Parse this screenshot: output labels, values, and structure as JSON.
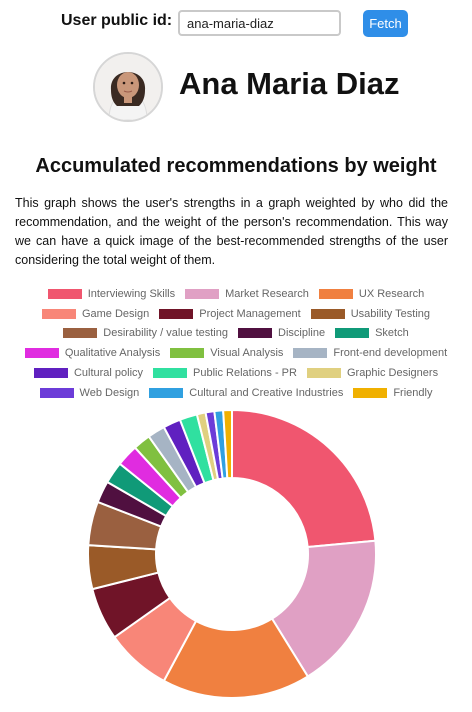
{
  "header": {
    "user_id_label": "User public id:",
    "user_id_value": "ana-maria-diaz",
    "fetch_label": "Fetch"
  },
  "profile": {
    "name": "Ana Maria Diaz"
  },
  "section": {
    "title": "Accumulated recommendations by weight",
    "description": "This graph shows the user's strengths in a graph weighted by who did the recommendation, and the weight of the person's recommendation. This way we can have a quick image of the best-recommended strengths of the user considering the total weight of them."
  },
  "legend_rows": [
    [
      0,
      1,
      2
    ],
    [
      3,
      4,
      5
    ],
    [
      6,
      7,
      8
    ],
    [
      9,
      10,
      11
    ],
    [
      12,
      13,
      14
    ],
    [
      15,
      16,
      17
    ]
  ],
  "chart_data": {
    "type": "pie",
    "categories": [
      "Interviewing Skills",
      "Market Research",
      "UX Research",
      "Game Design",
      "Project Management",
      "Usability Testing",
      "Desirability / value testing",
      "Discipline",
      "Sketch",
      "Qualitative Analysis",
      "Visual Analysis",
      "Front-end development",
      "Cultural policy",
      "Public Relations - PR",
      "Graphic Designers",
      "Web Design",
      "Cultural and Creative Industries",
      "Friendly"
    ],
    "values": [
      24,
      18,
      17,
      7.5,
      6,
      5,
      5,
      2.5,
      2.5,
      2.5,
      2,
      2,
      2,
      2,
      1,
      1,
      1,
      1
    ],
    "colors": [
      "#f0566f",
      "#e0a0c4",
      "#f08040",
      "#f88678",
      "#701428",
      "#9a5a28",
      "#9a6040",
      "#501040",
      "#109a78",
      "#e02ce0",
      "#80c040",
      "#a6b4c4",
      "#6020c0",
      "#30e0a0",
      "#e0d080",
      "#6c3cd8",
      "#30a0e0",
      "#f0b000"
    ],
    "donut": true
  }
}
